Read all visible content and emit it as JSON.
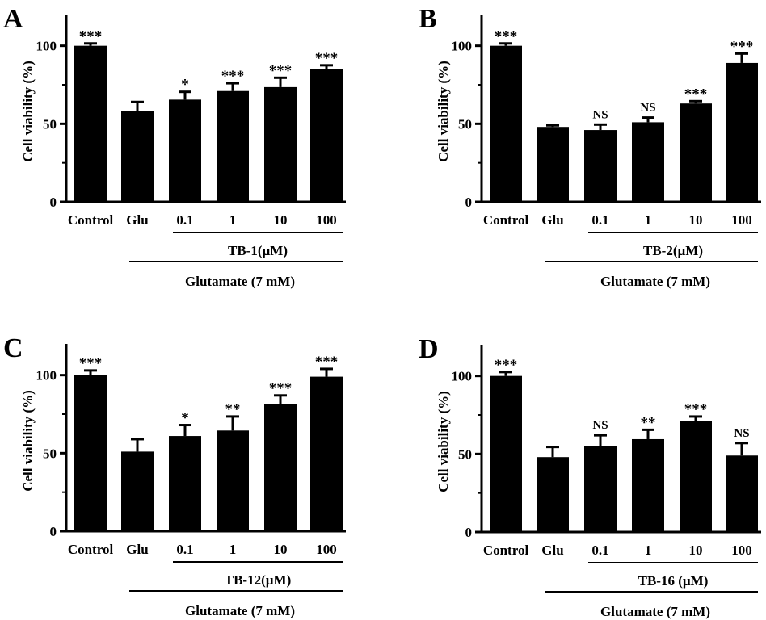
{
  "chart_data": [
    {
      "type": "bar",
      "panel_label": "A",
      "categories": [
        "Control",
        "Glu",
        "0.1",
        "1",
        "10",
        "100"
      ],
      "values": [
        100,
        58,
        65.5,
        71,
        73.5,
        85
      ],
      "errors": [
        1.5,
        6,
        5,
        5,
        6,
        2.5
      ],
      "significance": [
        "***",
        "",
        "*",
        "***",
        "***",
        "***"
      ],
      "ylabel": "Cell viability (%)",
      "yticks": [
        0,
        50,
        100
      ],
      "ylim": [
        0,
        120
      ],
      "treatment_label": "TB-1(µM)",
      "condition_label": "Glutamate (7 mM)"
    },
    {
      "type": "bar",
      "panel_label": "B",
      "categories": [
        "Control",
        "Glu",
        "0.1",
        "1",
        "10",
        "100"
      ],
      "values": [
        100,
        48,
        46,
        51,
        63,
        89
      ],
      "errors": [
        1.5,
        1,
        3.5,
        3,
        1.5,
        6
      ],
      "significance": [
        "***",
        "",
        "NS",
        "NS",
        "***",
        "***"
      ],
      "ylabel": "Cell viability (%)",
      "yticks": [
        0,
        50,
        100
      ],
      "ylim": [
        0,
        120
      ],
      "treatment_label": "TB-2(µM)",
      "condition_label": "Glutamate (7 mM)"
    },
    {
      "type": "bar",
      "panel_label": "C",
      "categories": [
        "Control",
        "Glu",
        "0.1",
        "1",
        "10",
        "100"
      ],
      "values": [
        100,
        51,
        61,
        64.5,
        81.5,
        99
      ],
      "errors": [
        3,
        8,
        7,
        9,
        5.5,
        5
      ],
      "significance": [
        "***",
        "",
        "*",
        "**",
        "***",
        "***"
      ],
      "ylabel": "Cell viability (%)",
      "yticks": [
        0,
        50,
        100
      ],
      "ylim": [
        0,
        120
      ],
      "treatment_label": "TB-12(µM)",
      "condition_label": "Glutamate (7 mM)"
    },
    {
      "type": "bar",
      "panel_label": "D",
      "categories": [
        "Control",
        "Glu",
        "0.1",
        "1",
        "10",
        "100"
      ],
      "values": [
        100,
        48,
        55,
        59.5,
        71,
        49
      ],
      "errors": [
        2.5,
        6.5,
        7,
        6,
        3,
        8
      ],
      "significance": [
        "***",
        "",
        "NS",
        "**",
        "***",
        "NS"
      ],
      "ylabel": "Cell viability (%)",
      "yticks": [
        0,
        50,
        100
      ],
      "ylim": [
        0,
        120
      ],
      "treatment_label": "TB-16 (µM)",
      "condition_label": "Glutamate (7 mM)"
    }
  ]
}
